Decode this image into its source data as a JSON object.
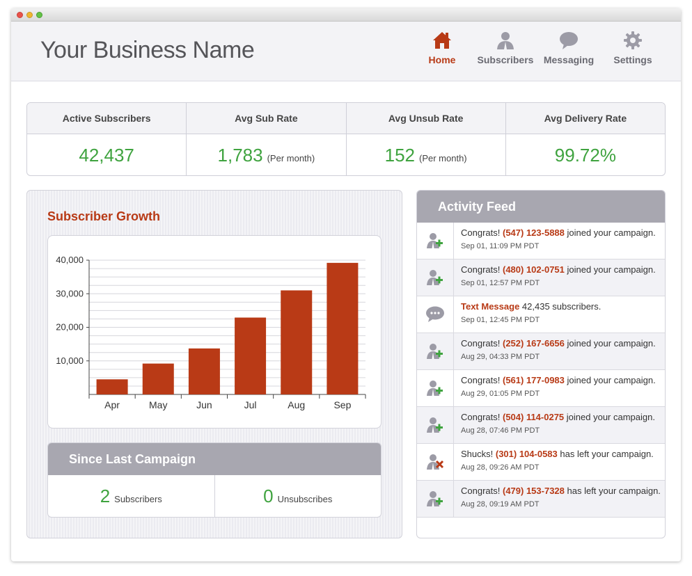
{
  "app": {
    "business_name": "Your Business Name"
  },
  "nav": [
    {
      "label": "Home",
      "icon": "home-icon",
      "active": true
    },
    {
      "label": "Subscribers",
      "icon": "user-icon",
      "active": false
    },
    {
      "label": "Messaging",
      "icon": "speech-bubble-icon",
      "active": false
    },
    {
      "label": "Settings",
      "icon": "gear-icon",
      "active": false
    }
  ],
  "stats": [
    {
      "label": "Active Subscribers",
      "value": "42,437",
      "unit": ""
    },
    {
      "label": "Avg Sub Rate",
      "value": "1,783",
      "unit": "(Per month)"
    },
    {
      "label": "Avg Unsub Rate",
      "value": "152",
      "unit": "(Per month)"
    },
    {
      "label": "Avg Delivery Rate",
      "value": "99.72%",
      "unit": ""
    }
  ],
  "growth": {
    "title": "Subscriber Growth"
  },
  "chart_data": {
    "type": "bar",
    "categories": [
      "Apr",
      "May",
      "Jun",
      "Jul",
      "Aug",
      "Sep"
    ],
    "values": [
      4500,
      9200,
      13700,
      22900,
      31000,
      39200
    ],
    "y_ticks": [
      "10,000",
      "20,000",
      "30,000",
      "40,000"
    ],
    "ylim": [
      0,
      40000
    ],
    "bar_color": "#b93a16",
    "grid": true
  },
  "campaign": {
    "title": "Since Last Campaign",
    "subscribers_value": "2",
    "subscribers_label": "Subscribers",
    "unsubscribes_value": "0",
    "unsubscribes_label": "Unsubscribes"
  },
  "feed": {
    "title": "Activity Feed",
    "items": [
      {
        "icon": "user-add-icon",
        "prefix": "Congrats!",
        "highlight": "(547) 123-5888",
        "suffix": "joined your campaign.",
        "time": "Sep 01, 11:09 PM PDT"
      },
      {
        "icon": "user-add-icon",
        "prefix": "Congrats!",
        "highlight": "(480) 102-0751",
        "suffix": "joined your campaign.",
        "time": "Sep 01, 12:57 PM PDT"
      },
      {
        "icon": "chat-bubble-icon",
        "prefix": "",
        "highlight": "Text Message",
        "suffix": "42,435 subscribers.",
        "time": "Sep 01, 12:45 PM PDT"
      },
      {
        "icon": "user-add-icon",
        "prefix": "Congrats!",
        "highlight": "(252) 167-6656",
        "suffix": "joined your campaign.",
        "time": "Aug 29, 04:33 PM PDT"
      },
      {
        "icon": "user-add-icon",
        "prefix": "Congrats!",
        "highlight": "(561) 177-0983",
        "suffix": "joined your campaign.",
        "time": "Aug 29, 01:05 PM PDT"
      },
      {
        "icon": "user-add-icon",
        "prefix": "Congrats!",
        "highlight": "(504) 114-0275",
        "suffix": "joined your campaign.",
        "time": "Aug 28, 07:46 PM PDT"
      },
      {
        "icon": "user-remove-icon",
        "prefix": "Shucks!",
        "highlight": "(301) 104-0583",
        "suffix": "has left your campaign.",
        "time": "Aug 28, 09:26 AM PDT"
      },
      {
        "icon": "user-add-icon",
        "prefix": "Congrats!",
        "highlight": "(479) 153-7328",
        "suffix": "has left your campaign.",
        "time": "Aug 28, 09:19 AM PDT"
      }
    ]
  },
  "colors": {
    "accent": "#b83a16",
    "positive": "#3fa33f",
    "panel_header": "#a8a7b0"
  }
}
